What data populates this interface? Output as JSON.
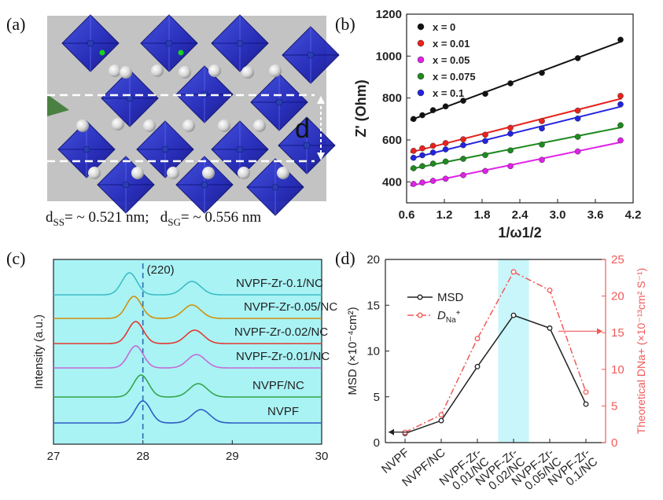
{
  "panels": {
    "a": {
      "label": "(a)",
      "d_label": "d",
      "caption": {
        "d1": "d",
        "s1": "SS",
        "v1": "= ~ 0.521 nm;",
        "d2": "d",
        "s2": "SG",
        "v2": "= ~ 0.556 nm"
      }
    },
    "b": {
      "label": "(b)"
    },
    "c": {
      "label": "(c)"
    },
    "d": {
      "label": "(d)"
    }
  },
  "chart_data": [
    {
      "panel": "b",
      "type": "scatter",
      "xlabel": "1/ω1/2",
      "ylabel": "Z' (Ohm)",
      "xlim": [
        0.6,
        4.2
      ],
      "ylim": [
        300,
        1200
      ],
      "xticks": [
        "0.6",
        "1.2",
        "1.8",
        "2.4",
        "3.0",
        "3.6",
        "4.2"
      ],
      "yticks": [
        "400",
        "600",
        "800",
        "1000",
        "1200"
      ],
      "legend_position": "top-left",
      "x": [
        0.71,
        0.85,
        1.02,
        1.22,
        1.5,
        1.85,
        2.25,
        2.75,
        3.32,
        4.0
      ],
      "series": [
        {
          "name": "x = 0",
          "color": "#111111",
          "values": [
            700,
            718,
            742,
            760,
            787,
            820,
            870,
            920,
            990,
            1078
          ]
        },
        {
          "name": "x = 0.01",
          "color": "#e8231f",
          "values": [
            548,
            560,
            572,
            585,
            603,
            625,
            658,
            690,
            740,
            810
          ]
        },
        {
          "name": "x = 0.05",
          "color": "#e020e8",
          "values": [
            390,
            397,
            405,
            415,
            432,
            452,
            475,
            505,
            545,
            598
          ]
        },
        {
          "name": "x = 0.075",
          "color": "#1f8a1f",
          "values": [
            465,
            475,
            487,
            497,
            510,
            528,
            550,
            578,
            615,
            670
          ]
        },
        {
          "name": "x = 0.1",
          "color": "#2323e0",
          "values": [
            515,
            527,
            540,
            555,
            575,
            595,
            630,
            655,
            702,
            770
          ]
        }
      ]
    },
    {
      "panel": "c",
      "type": "line",
      "xlabel": "",
      "ylabel": "Intensity (a.u.)",
      "xlim": [
        27,
        30
      ],
      "xticks": [
        "27",
        "28",
        "29",
        "30"
      ],
      "annotation": "(220)",
      "reference_x": 28.0,
      "background": "#a9f3f5",
      "series": [
        {
          "name": "NVPF-Zr-0.1/NC",
          "color": "#3cbdc6",
          "peaks": [
            27.85,
            28.55
          ]
        },
        {
          "name": "NVPF-Zr-0.05/NC",
          "color": "#d2900c",
          "peaks": [
            27.9,
            28.55
          ]
        },
        {
          "name": "NVPF-Zr-0.02/NC",
          "color": "#e2392f",
          "peaks": [
            27.92,
            28.58
          ]
        },
        {
          "name": "NVPF-Zr-0.01/NC",
          "color": "#c46ad6",
          "peaks": [
            27.92,
            28.6
          ]
        },
        {
          "name": "NVPF/NC",
          "color": "#35a549",
          "peaks": [
            27.98,
            28.62
          ]
        },
        {
          "name": "NVPF",
          "color": "#2d5cc4",
          "peaks": [
            28.0,
            28.65
          ]
        }
      ]
    },
    {
      "panel": "d",
      "type": "line",
      "categories": [
        "NVPF",
        "NVPF/NC",
        "NVPF-Zr-0.01/NC",
        "NVPF-Zr-0.02/NC",
        "NVPF-Zr-0.05/NC",
        "NVPF-Zr-0.1/NC"
      ],
      "ylabel_left": "MSD (×10⁻⁴cm²)",
      "ylabel_right": "Theoretical DNa+ (×10⁻¹³cm² S⁻¹)",
      "ylim_left": [
        0,
        20
      ],
      "ylim_right": [
        0,
        25
      ],
      "yticks_left": [
        "0",
        "5",
        "10",
        "15",
        "20"
      ],
      "yticks_right": [
        "0",
        "5",
        "10",
        "15",
        "20",
        "25"
      ],
      "highlight_category": "NVPF-Zr-0.02/NC",
      "highlight_color": "#c8f6fa",
      "series": [
        {
          "name": "MSD",
          "axis": "left",
          "color": "#222222",
          "values": [
            1.0,
            2.4,
            8.3,
            13.9,
            12.5,
            4.2
          ]
        },
        {
          "name": "DNa+",
          "axis": "right",
          "color": "#f05a5a",
          "values": [
            1.4,
            3.8,
            14.2,
            23.3,
            20.8,
            6.9
          ]
        }
      ],
      "legend": {
        "msd": "MSD",
        "dna_main": "D",
        "dna_sub": "Na",
        "dna_sup": "+"
      }
    }
  ]
}
